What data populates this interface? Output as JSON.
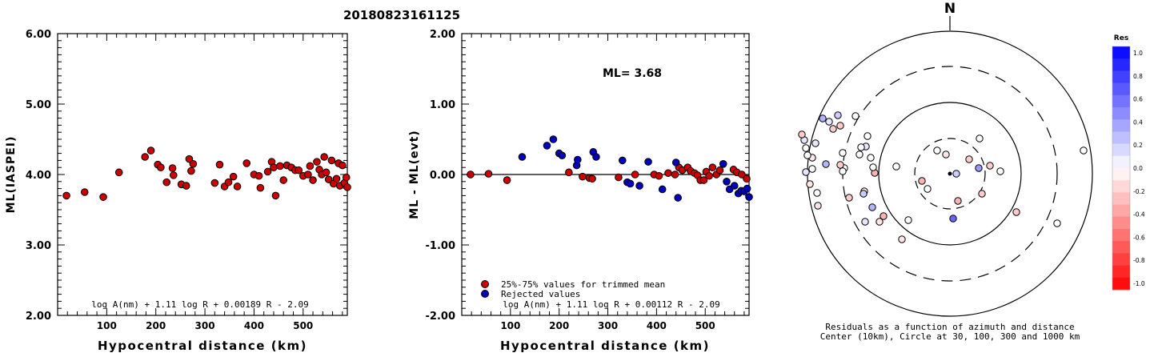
{
  "title": "20180823161125",
  "colors": {
    "red": "#cc0000",
    "blue": "#0000bb"
  },
  "chart_data": [
    {
      "type": "scatter",
      "xlabel": "Hypocentral distance (km)",
      "ylabel": "ML(IASPEI)",
      "xlim": [
        0,
        590
      ],
      "ylim": [
        2.0,
        6.0
      ],
      "xticks": [
        100,
        200,
        300,
        400,
        500
      ],
      "yticks": [
        2.0,
        3.0,
        4.0,
        5.0,
        6.0
      ],
      "ytick_labels": [
        "2.00",
        "3.00",
        "4.00",
        "5.00",
        "6.00"
      ],
      "formula": "log A(nm) + 1.11 log R + 0.00189 R - 2.09",
      "points": [
        [
          18,
          3.7
        ],
        [
          55,
          3.75
        ],
        [
          93,
          3.68
        ],
        [
          125,
          4.03
        ],
        [
          178,
          4.25
        ],
        [
          190,
          4.34
        ],
        [
          204,
          4.14
        ],
        [
          210,
          4.1
        ],
        [
          222,
          3.89
        ],
        [
          234,
          4.09
        ],
        [
          236,
          3.99
        ],
        [
          252,
          3.86
        ],
        [
          262,
          3.84
        ],
        [
          268,
          4.22
        ],
        [
          272,
          4.05
        ],
        [
          276,
          4.15
        ],
        [
          320,
          3.88
        ],
        [
          330,
          4.14
        ],
        [
          340,
          3.83
        ],
        [
          348,
          3.89
        ],
        [
          358,
          3.97
        ],
        [
          366,
          3.83
        ],
        [
          385,
          4.16
        ],
        [
          400,
          4.0
        ],
        [
          410,
          3.98
        ],
        [
          413,
          3.81
        ],
        [
          428,
          4.04
        ],
        [
          436,
          4.18
        ],
        [
          440,
          4.1
        ],
        [
          444,
          3.7
        ],
        [
          453,
          4.12
        ],
        [
          460,
          3.92
        ],
        [
          467,
          4.13
        ],
        [
          476,
          4.1
        ],
        [
          484,
          4.06
        ],
        [
          491,
          4.06
        ],
        [
          500,
          3.98
        ],
        [
          510,
          4.0
        ],
        [
          514,
          4.12
        ],
        [
          520,
          3.92
        ],
        [
          528,
          4.18
        ],
        [
          533,
          4.07
        ],
        [
          538,
          4.0
        ],
        [
          543,
          4.25
        ],
        [
          547,
          4.03
        ],
        [
          552,
          3.93
        ],
        [
          558,
          4.2
        ],
        [
          562,
          3.87
        ],
        [
          568,
          3.94
        ],
        [
          572,
          4.16
        ],
        [
          575,
          3.84
        ],
        [
          580,
          4.13
        ],
        [
          584,
          3.88
        ],
        [
          588,
          3.96
        ],
        [
          590,
          3.82
        ]
      ]
    },
    {
      "type": "scatter",
      "xlabel": "Hypocentral distance (km)",
      "ylabel": "ML - ML(evt)",
      "xlim": [
        0,
        590
      ],
      "ylim": [
        -2.0,
        2.0
      ],
      "xticks": [
        100,
        200,
        300,
        400,
        500
      ],
      "yticks": [
        -2.0,
        -1.0,
        0.0,
        1.0,
        2.0
      ],
      "ytick_labels": [
        "-2.00",
        "-1.00",
        "0.00",
        "1.00",
        "2.00"
      ],
      "annotation": "ML= 3.68",
      "legend": [
        "25%-75% values for trimmed mean",
        "Rejected values"
      ],
      "formula": "log A(nm) + 1.11 log R + 0.00112 R - 2.09",
      "points_trimmed": [
        [
          18,
          0.0
        ],
        [
          55,
          0.01
        ],
        [
          93,
          -0.08
        ],
        [
          220,
          0.03
        ],
        [
          248,
          -0.03
        ],
        [
          262,
          -0.05
        ],
        [
          268,
          -0.06
        ],
        [
          322,
          -0.04
        ],
        [
          356,
          0.0
        ],
        [
          395,
          0.0
        ],
        [
          405,
          -0.02
        ],
        [
          424,
          0.02
        ],
        [
          438,
          0.0
        ],
        [
          446,
          0.1
        ],
        [
          453,
          0.06
        ],
        [
          464,
          0.1
        ],
        [
          470,
          0.05
        ],
        [
          478,
          0.02
        ],
        [
          484,
          -0.01
        ],
        [
          490,
          -0.08
        ],
        [
          497,
          -0.08
        ],
        [
          502,
          0.04
        ],
        [
          508,
          -0.02
        ],
        [
          515,
          0.1
        ],
        [
          523,
          0.0
        ],
        [
          530,
          0.06
        ],
        [
          558,
          0.07
        ],
        [
          565,
          0.03
        ],
        [
          575,
          0.0
        ],
        [
          585,
          -0.06
        ]
      ],
      "points_rejected": [
        [
          124,
          0.25
        ],
        [
          175,
          0.41
        ],
        [
          188,
          0.5
        ],
        [
          200,
          0.3
        ],
        [
          206,
          0.27
        ],
        [
          236,
          0.13
        ],
        [
          238,
          0.21
        ],
        [
          270,
          0.32
        ],
        [
          276,
          0.25
        ],
        [
          330,
          0.2
        ],
        [
          340,
          -0.11
        ],
        [
          346,
          -0.13
        ],
        [
          365,
          -0.16
        ],
        [
          383,
          0.18
        ],
        [
          412,
          -0.21
        ],
        [
          440,
          0.17
        ],
        [
          444,
          -0.33
        ],
        [
          537,
          0.15
        ],
        [
          544,
          -0.1
        ],
        [
          550,
          -0.21
        ],
        [
          560,
          -0.16
        ],
        [
          568,
          -0.27
        ],
        [
          574,
          -0.23
        ],
        [
          580,
          -0.24
        ],
        [
          586,
          -0.2
        ],
        [
          590,
          -0.32
        ]
      ]
    }
  ],
  "polar": {
    "north_label": "N",
    "caption_line1": "Residuals as a function of azimuth and distance",
    "caption_line2": "Center (10km), Circle at 30, 100, 300 and 1000 km",
    "colorbar_title": "Res",
    "colorbar_ticks": [
      "1.0",
      "0.8",
      "0.6",
      "0.4",
      "0.2",
      "0.0",
      "-0.2",
      "-0.4",
      "-0.6",
      "-0.8",
      "-1.0"
    ],
    "stations": [
      [
        -46,
        62,
        0
      ],
      [
        -13,
        -29,
        0
      ],
      [
        -97,
        48,
        -0.2
      ],
      [
        -117,
        -3,
        0
      ],
      [
        -130,
        -10,
        -0.2
      ],
      [
        -140,
        25,
        -0.2
      ],
      [
        -144,
        -7,
        0.4
      ],
      [
        -143,
        -44,
        0
      ],
      [
        -156,
        -18,
        -0.2
      ],
      [
        -172,
        0,
        0.2
      ],
      [
        -170,
        34,
        -0.3
      ],
      [
        -176,
        56,
        0.6
      ],
      [
        -185,
        -24,
        -0.1
      ],
      [
        -196,
        -29,
        0
      ],
      [
        -208,
        19,
        0
      ],
      [
        -215,
        9,
        -0.3
      ],
      [
        -232,
        58,
        0
      ],
      [
        -240,
        82,
        -0.1
      ],
      [
        -247,
        -9,
        0
      ],
      [
        -263,
        53,
        -0.3
      ],
      [
        -268,
        60,
        -0.1
      ],
      [
        -274,
        -1,
        -0.3
      ],
      [
        -276,
        -8,
        0
      ],
      [
        -277,
        42,
        0.3
      ],
      [
        -279,
        -20,
        0
      ],
      [
        -283,
        -47,
        0
      ],
      [
        -285,
        -34,
        0.1
      ],
      [
        -286,
        60,
        0.1
      ],
      [
        -287,
        22,
        -0.1
      ],
      [
        -288,
        25,
        0.2
      ],
      [
        -291,
        -33,
        0
      ],
      [
        -293,
        -24,
        0
      ],
      [
        -298,
        -72,
        0
      ],
      [
        -306,
        30,
        -0.2
      ],
      [
        -312,
        -7,
        0
      ],
      [
        -314,
        -3,
        0
      ],
      [
        -314,
        -26,
        0
      ],
      [
        -317,
        -11,
        -0.2
      ],
      [
        -317,
        -60,
        -0.2
      ],
      [
        -320,
        -73,
        0.2
      ],
      [
        -326,
        -56,
        -0.2
      ],
      [
        -331,
        -65,
        0.1
      ],
      [
        -335,
        -12,
        0.3
      ],
      [
        -339,
        -69,
        0.3
      ],
      [
        -345,
        40,
        -0.1
      ],
      [
        -346,
        24,
        0
      ],
      [
        -348,
        -38,
        0.1
      ],
      [
        -352,
        -6,
        0
      ],
      [
        -352,
        -20,
        -0.1
      ],
      [
        -355,
        13,
        -0.1
      ],
      [
        -358,
        -23,
        0
      ],
      [
        -360,
        -2,
        0.1
      ],
      [
        -360,
        -32,
        0
      ],
      [
        -362,
        -42,
        0.1
      ],
      [
        -365,
        -49,
        -0.2
      ]
    ]
  }
}
